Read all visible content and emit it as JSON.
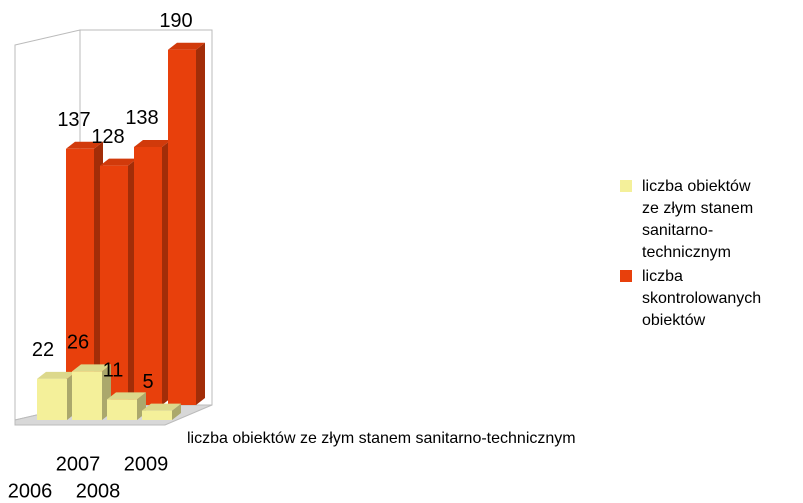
{
  "chart_data": {
    "type": "bar3d",
    "categories": [
      "2006",
      "2007",
      "2008",
      "2009"
    ],
    "series": [
      {
        "name": "liczba obiektów ze złym stanem sanitarno-technicznym",
        "color": "#f4f09a",
        "values": [
          22,
          26,
          11,
          5
        ]
      },
      {
        "name": "liczba skontrolowanych obiektów",
        "color": "#e8400c",
        "values": [
          137,
          128,
          138,
          190
        ]
      }
    ],
    "legend": "right"
  }
}
